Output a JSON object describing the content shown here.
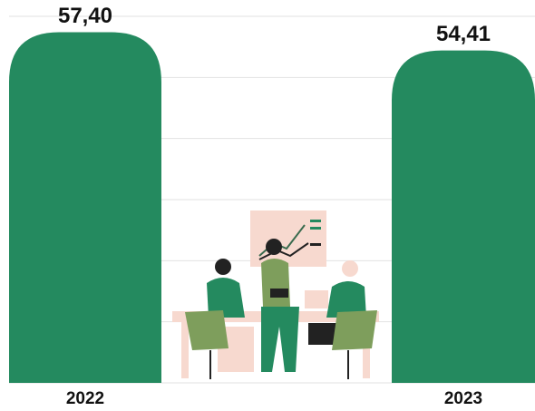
{
  "chart_data": {
    "type": "bar",
    "categories": [
      "2022",
      "2023"
    ],
    "values": [
      57.4,
      54.41
    ],
    "value_labels": [
      "57,40",
      "54,41"
    ],
    "color": "#248a5f",
    "ylim": [
      0,
      60
    ],
    "yticks": [
      0,
      10,
      20,
      30,
      40,
      50,
      60
    ],
    "grid": true
  }
}
